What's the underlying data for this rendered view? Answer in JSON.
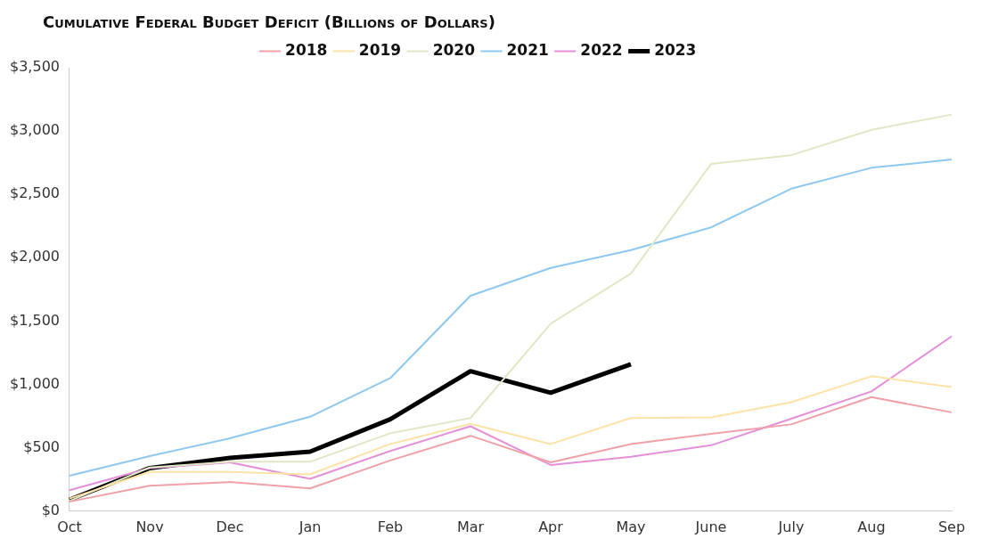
{
  "chart_data": {
    "type": "line",
    "title": "Cumulative Federal Budget Deficit (Billions of Dollars)",
    "categories": [
      "Oct",
      "Nov",
      "Dec",
      "Jan",
      "Feb",
      "Mar",
      "Apr",
      "May",
      "June",
      "July",
      "Aug",
      "Sep"
    ],
    "series": [
      {
        "name": "2018",
        "color": "#f0a0a8",
        "values": [
          75,
          200,
          230,
          180,
          400,
          595,
          385,
          530,
          610,
          685,
          900,
          780
        ]
      },
      {
        "name": "2019",
        "color": "#fde3a7",
        "values": [
          100,
          310,
          310,
          290,
          530,
          690,
          530,
          735,
          740,
          860,
          1065,
          980
        ]
      },
      {
        "name": "2020",
        "color": "#dfe8c4",
        "values": [
          80,
          345,
          390,
          390,
          615,
          735,
          1480,
          1875,
          2740,
          2810,
          3010,
          3130
        ]
      },
      {
        "name": "2021",
        "color": "#8ec8f0",
        "values": [
          280,
          435,
          575,
          745,
          1050,
          1700,
          1920,
          2060,
          2240,
          2545,
          2710,
          2775
        ]
      },
      {
        "name": "2022",
        "color": "#e58fd8",
        "values": [
          165,
          340,
          385,
          255,
          475,
          670,
          365,
          430,
          520,
          730,
          945,
          1380
        ]
      },
      {
        "name": "2023",
        "color": "#000000",
        "values": [
          90,
          340,
          420,
          470,
          725,
          1105,
          935,
          1160,
          null,
          null,
          null,
          null
        ]
      }
    ],
    "ylim": [
      0,
      3500
    ],
    "yticks": [
      {
        "value": 0,
        "label": "$0"
      },
      {
        "value": 500,
        "label": "$500"
      },
      {
        "value": 1000,
        "label": "$1,000"
      },
      {
        "value": 1500,
        "label": "$1,500"
      },
      {
        "value": 2000,
        "label": "$2,000"
      },
      {
        "value": 2500,
        "label": "$2,500"
      },
      {
        "value": 3000,
        "label": "$3,000"
      },
      {
        "value": 3500,
        "label": "$3,500"
      }
    ],
    "grid": false,
    "legend": "top",
    "marker": "none",
    "line_style": "solid"
  }
}
